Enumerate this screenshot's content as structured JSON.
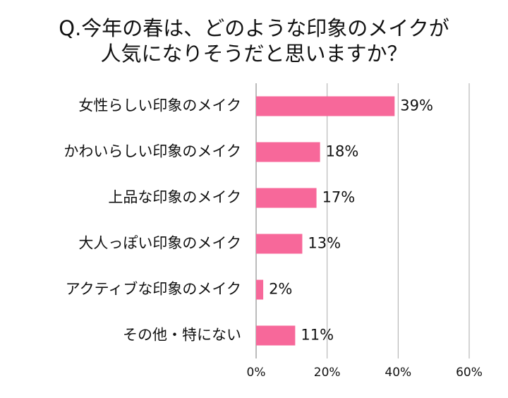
{
  "chart_data": {
    "type": "bar",
    "orientation": "horizontal",
    "title": [
      "Q.今年の春は、どのような印象のメイクが",
      "人気になりそうだと思いますか？"
    ],
    "categories": [
      "女性らしい印象のメイク",
      "かわいらしい印象のメイク",
      "上品な印象のメイク",
      "大人っぽい印象のメイク",
      "アクティブな印象のメイク",
      "その他・特にない"
    ],
    "values": [
      39,
      18,
      17,
      13,
      2,
      11
    ],
    "value_labels": [
      "39%",
      "18%",
      "17%",
      "13%",
      "2%",
      "11%"
    ],
    "color": "#f7689a",
    "xlim": [
      0,
      60
    ],
    "xticks": [
      {
        "value": 0,
        "label": "0%"
      },
      {
        "value": 20,
        "label": "20%"
      },
      {
        "value": 40,
        "label": "40%"
      },
      {
        "value": 60,
        "label": "60%"
      }
    ],
    "grid": true
  }
}
